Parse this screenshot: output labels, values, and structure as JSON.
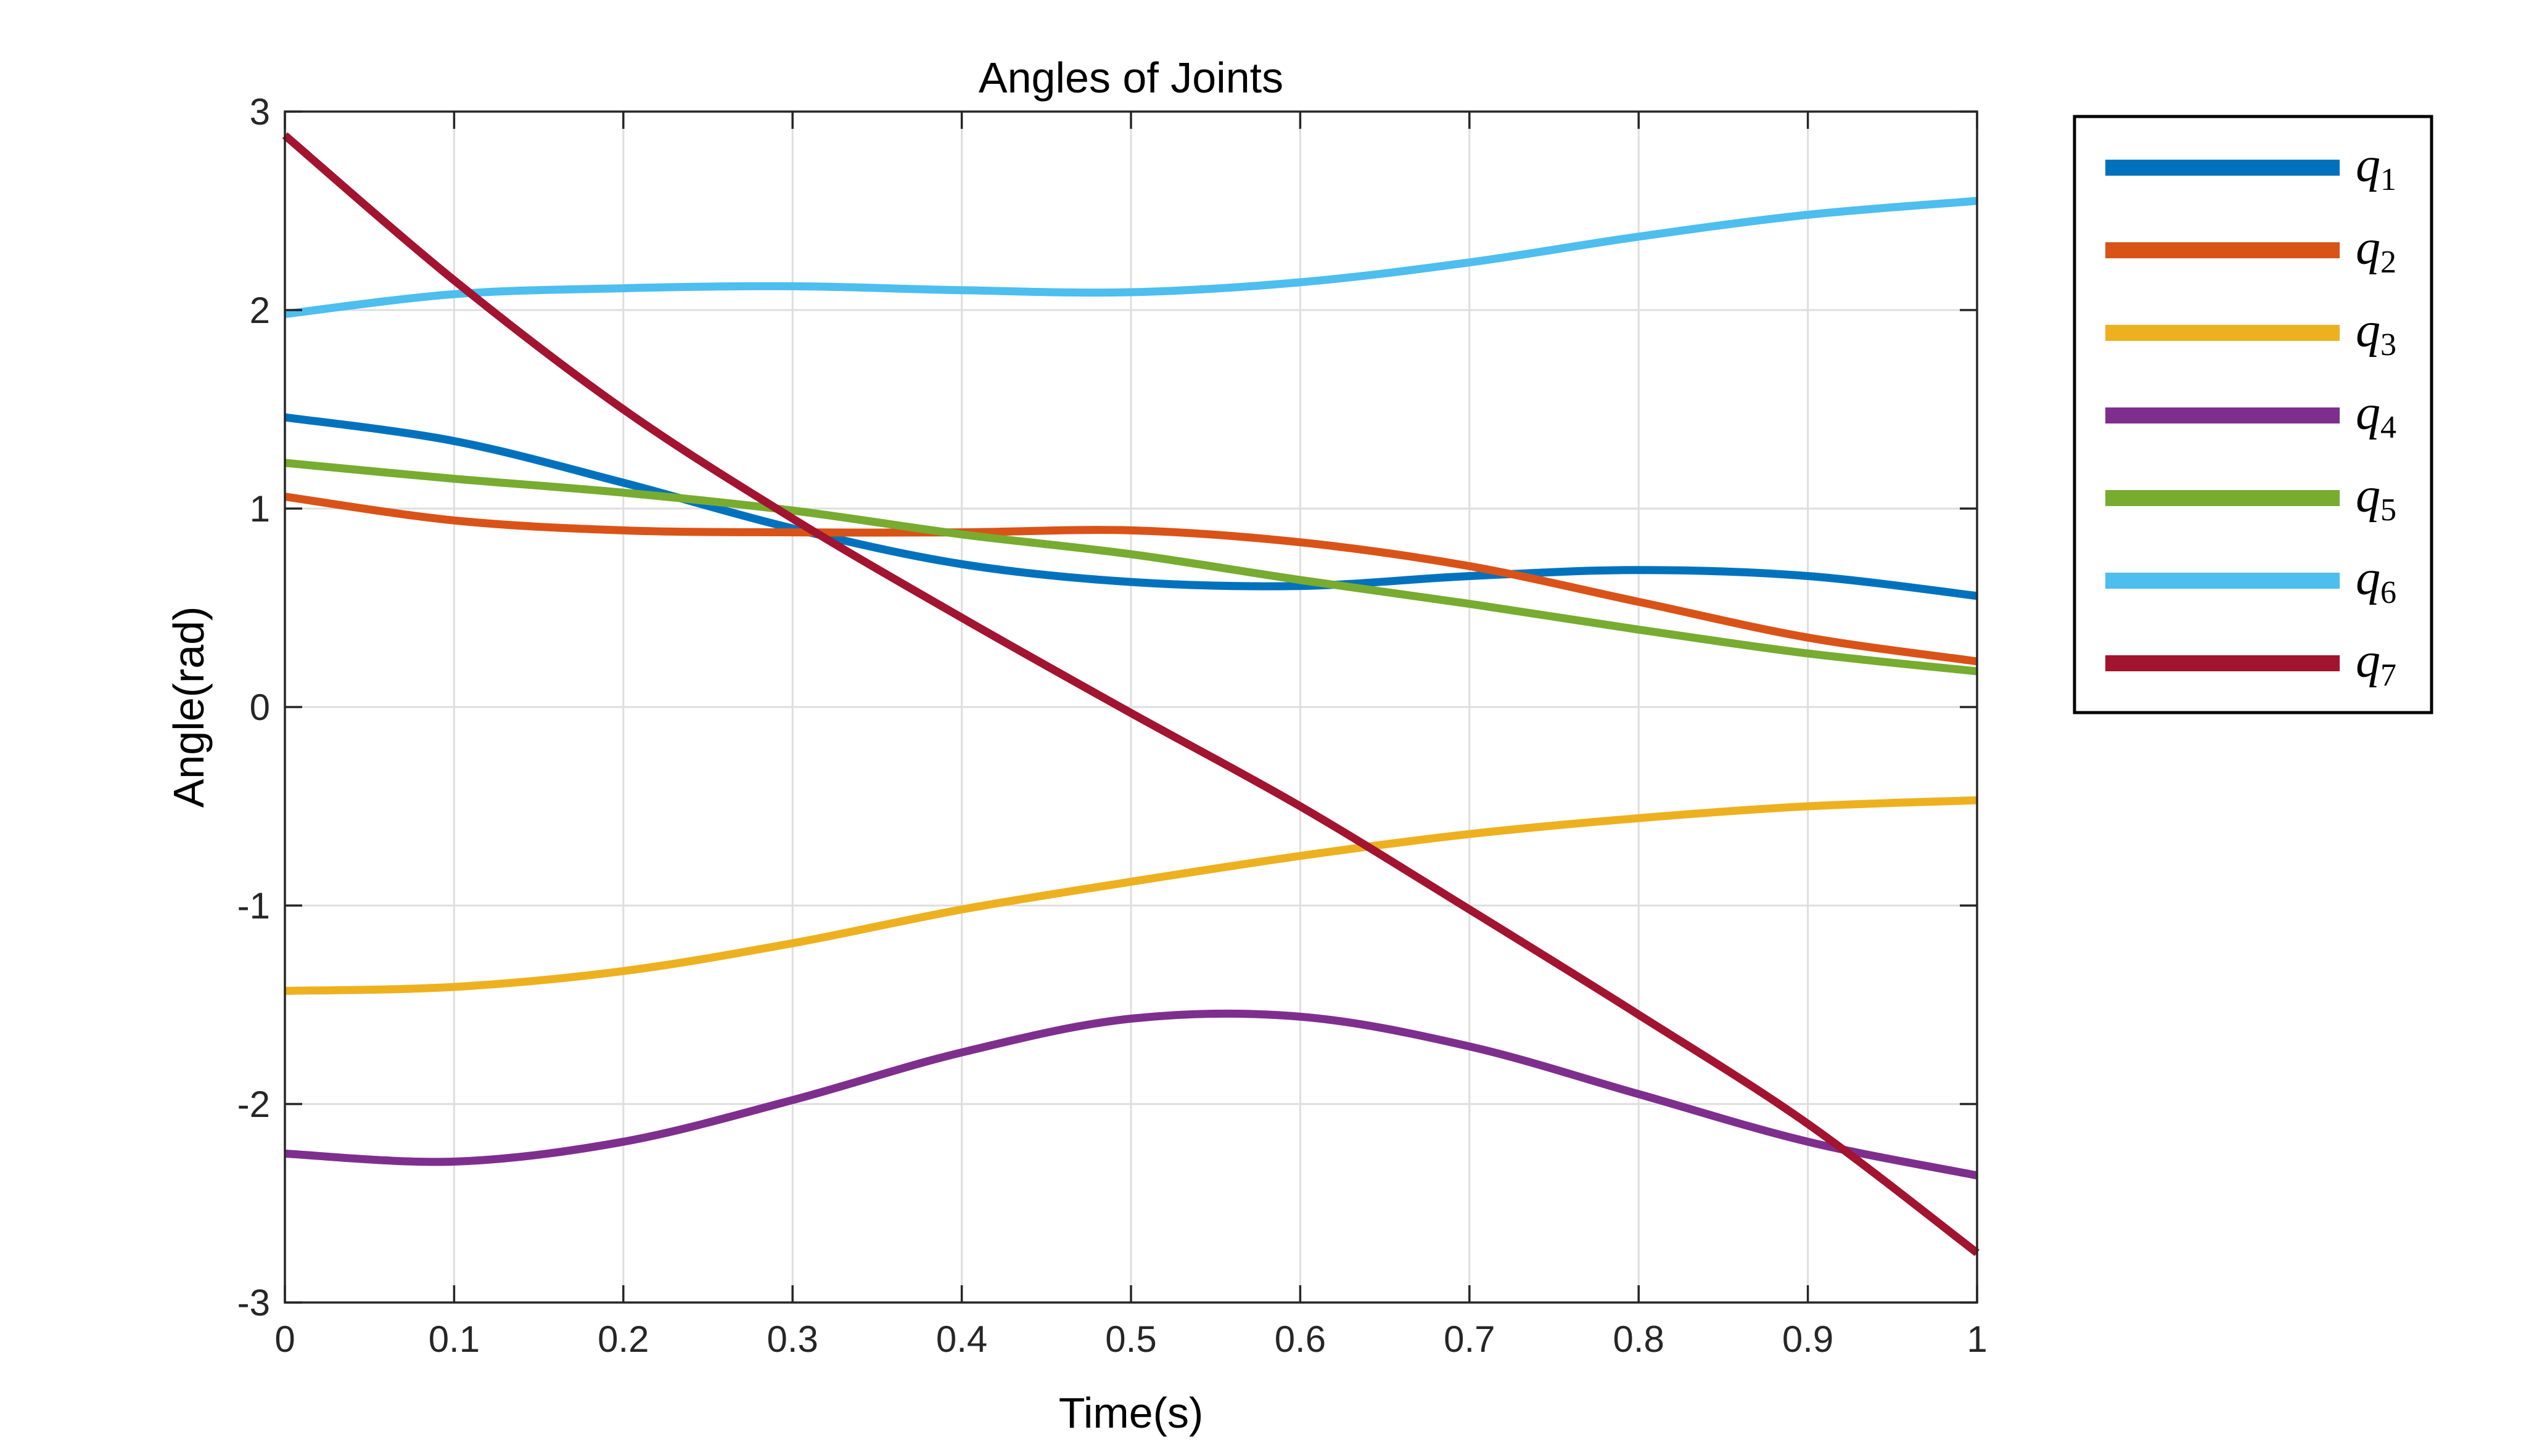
{
  "chart_data": {
    "type": "line",
    "title": "Angles of Joints",
    "xlabel": "Time(s)",
    "ylabel": "Angle(rad)",
    "xlim": [
      0,
      1
    ],
    "ylim": [
      -3,
      3
    ],
    "grid": true,
    "legend_position": "outside-top-right",
    "x_ticks": [
      0,
      0.1,
      0.2,
      0.3,
      0.4,
      0.5,
      0.6,
      0.7,
      0.8,
      0.9,
      1
    ],
    "x_tick_labels": [
      "0",
      "0.1",
      "0.2",
      "0.3",
      "0.4",
      "0.5",
      "0.6",
      "0.7",
      "0.8",
      "0.9",
      "1"
    ],
    "y_ticks": [
      -3,
      -2,
      -1,
      0,
      1,
      2,
      3
    ],
    "y_tick_labels": [
      "-3",
      "-2",
      "-1",
      "0",
      "1",
      "2",
      "3"
    ],
    "x": [
      0,
      0.1,
      0.2,
      0.3,
      0.4,
      0.5,
      0.6,
      0.7,
      0.8,
      0.9,
      1
    ],
    "series": [
      {
        "name": "q",
        "sub": "1",
        "color": "#0072BD",
        "values": [
          1.46,
          1.34,
          1.13,
          0.9,
          0.72,
          0.63,
          0.61,
          0.66,
          0.69,
          0.66,
          0.56
        ]
      },
      {
        "name": "q",
        "sub": "2",
        "color": "#D95319",
        "values": [
          1.06,
          0.94,
          0.89,
          0.88,
          0.88,
          0.89,
          0.83,
          0.71,
          0.53,
          0.35,
          0.23
        ]
      },
      {
        "name": "q",
        "sub": "3",
        "color": "#EDB120",
        "values": [
          -1.43,
          -1.41,
          -1.33,
          -1.19,
          -1.02,
          -0.88,
          -0.75,
          -0.64,
          -0.56,
          -0.5,
          -0.47
        ]
      },
      {
        "name": "q",
        "sub": "4",
        "color": "#7E2F8E",
        "values": [
          -2.25,
          -2.29,
          -2.19,
          -1.98,
          -1.74,
          -1.57,
          -1.56,
          -1.71,
          -1.95,
          -2.19,
          -2.36
        ]
      },
      {
        "name": "q",
        "sub": "5",
        "color": "#77AC30",
        "values": [
          1.23,
          1.15,
          1.08,
          0.99,
          0.87,
          0.77,
          0.64,
          0.52,
          0.39,
          0.27,
          0.18
        ]
      },
      {
        "name": "q",
        "sub": "6",
        "color": "#4DBEEE",
        "values": [
          1.98,
          2.08,
          2.11,
          2.12,
          2.1,
          2.09,
          2.14,
          2.24,
          2.37,
          2.48,
          2.55
        ]
      },
      {
        "name": "q",
        "sub": "7",
        "color": "#A2142F",
        "values": [
          2.88,
          2.15,
          1.5,
          0.95,
          0.45,
          -0.03,
          -0.5,
          -1.02,
          -1.55,
          -2.1,
          -2.75
        ]
      }
    ]
  }
}
